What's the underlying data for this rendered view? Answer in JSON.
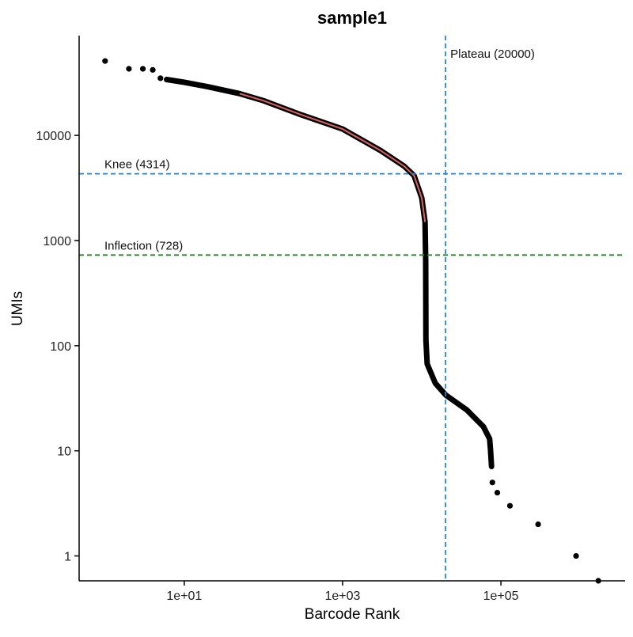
{
  "chart_data": {
    "type": "scatter",
    "title": "sample1",
    "xlabel": "Barcode Rank",
    "ylabel": "UMIs",
    "x_scale": "log10",
    "y_scale": "log10",
    "xlim": [
      0.47,
      3700000
    ],
    "ylim": [
      0.58,
      89000
    ],
    "x_ticks": [
      {
        "value": 10,
        "label": "1e+01"
      },
      {
        "value": 1000,
        "label": "1e+03"
      },
      {
        "value": 100000,
        "label": "1e+05"
      }
    ],
    "y_ticks": [
      {
        "value": 1,
        "label": "1"
      },
      {
        "value": 10,
        "label": "10"
      },
      {
        "value": 100,
        "label": "100"
      },
      {
        "value": 1000,
        "label": "1000"
      },
      {
        "value": 10000,
        "label": "10000"
      }
    ],
    "grid": false,
    "points": [
      {
        "rank": 1,
        "umis": 51000
      },
      {
        "rank": 2,
        "umis": 43000
      },
      {
        "rank": 3,
        "umis": 43000
      },
      {
        "rank": 4,
        "umis": 42000
      },
      {
        "rank": 5,
        "umis": 35000
      },
      {
        "rank": 6,
        "umis": 34000
      },
      {
        "rank": 78000,
        "umis": 5
      },
      {
        "rank": 90000,
        "umis": 4
      },
      {
        "rank": 130000,
        "umis": 3
      },
      {
        "rank": 295000,
        "umis": 2
      },
      {
        "rank": 890000,
        "umis": 1
      },
      {
        "rank": 1700000,
        "umis": 0.58
      }
    ],
    "curve": [
      [
        6,
        34000
      ],
      [
        10,
        32000
      ],
      [
        20,
        29000
      ],
      [
        50,
        25000
      ],
      [
        100,
        21400
      ],
      [
        300,
        15700
      ],
      [
        1000,
        11500
      ],
      [
        3000,
        7200
      ],
      [
        6000,
        5100
      ],
      [
        8000,
        4150
      ],
      [
        10000,
        2550
      ],
      [
        11000,
        1500
      ],
      [
        11200,
        640
      ],
      [
        11300,
        112
      ],
      [
        11700,
        67
      ],
      [
        14800,
        44
      ],
      [
        20000,
        34
      ],
      [
        37000,
        24.5
      ],
      [
        60000,
        17
      ],
      [
        72000,
        13
      ],
      [
        74000,
        10
      ],
      [
        76000,
        7.1
      ]
    ],
    "fit_line": {
      "color": "#e06060",
      "points": [
        [
          50,
          25000
        ],
        [
          100,
          21400
        ],
        [
          300,
          15700
        ],
        [
          1000,
          11500
        ],
        [
          3000,
          7200
        ],
        [
          6000,
          5100
        ],
        [
          8000,
          4150
        ],
        [
          10000,
          2550
        ],
        [
          11000,
          1500
        ]
      ]
    },
    "reference_lines": [
      {
        "orientation": "horizontal",
        "value": 4314,
        "label": "Knee (4314)",
        "color": "#1f84e0"
      },
      {
        "orientation": "horizontal",
        "value": 728,
        "label": "Inflection (728)",
        "color": "#1e8a1e"
      },
      {
        "orientation": "vertical",
        "value": 20000,
        "label": "Plateau (20000)",
        "color": "#1f84e0"
      }
    ]
  }
}
